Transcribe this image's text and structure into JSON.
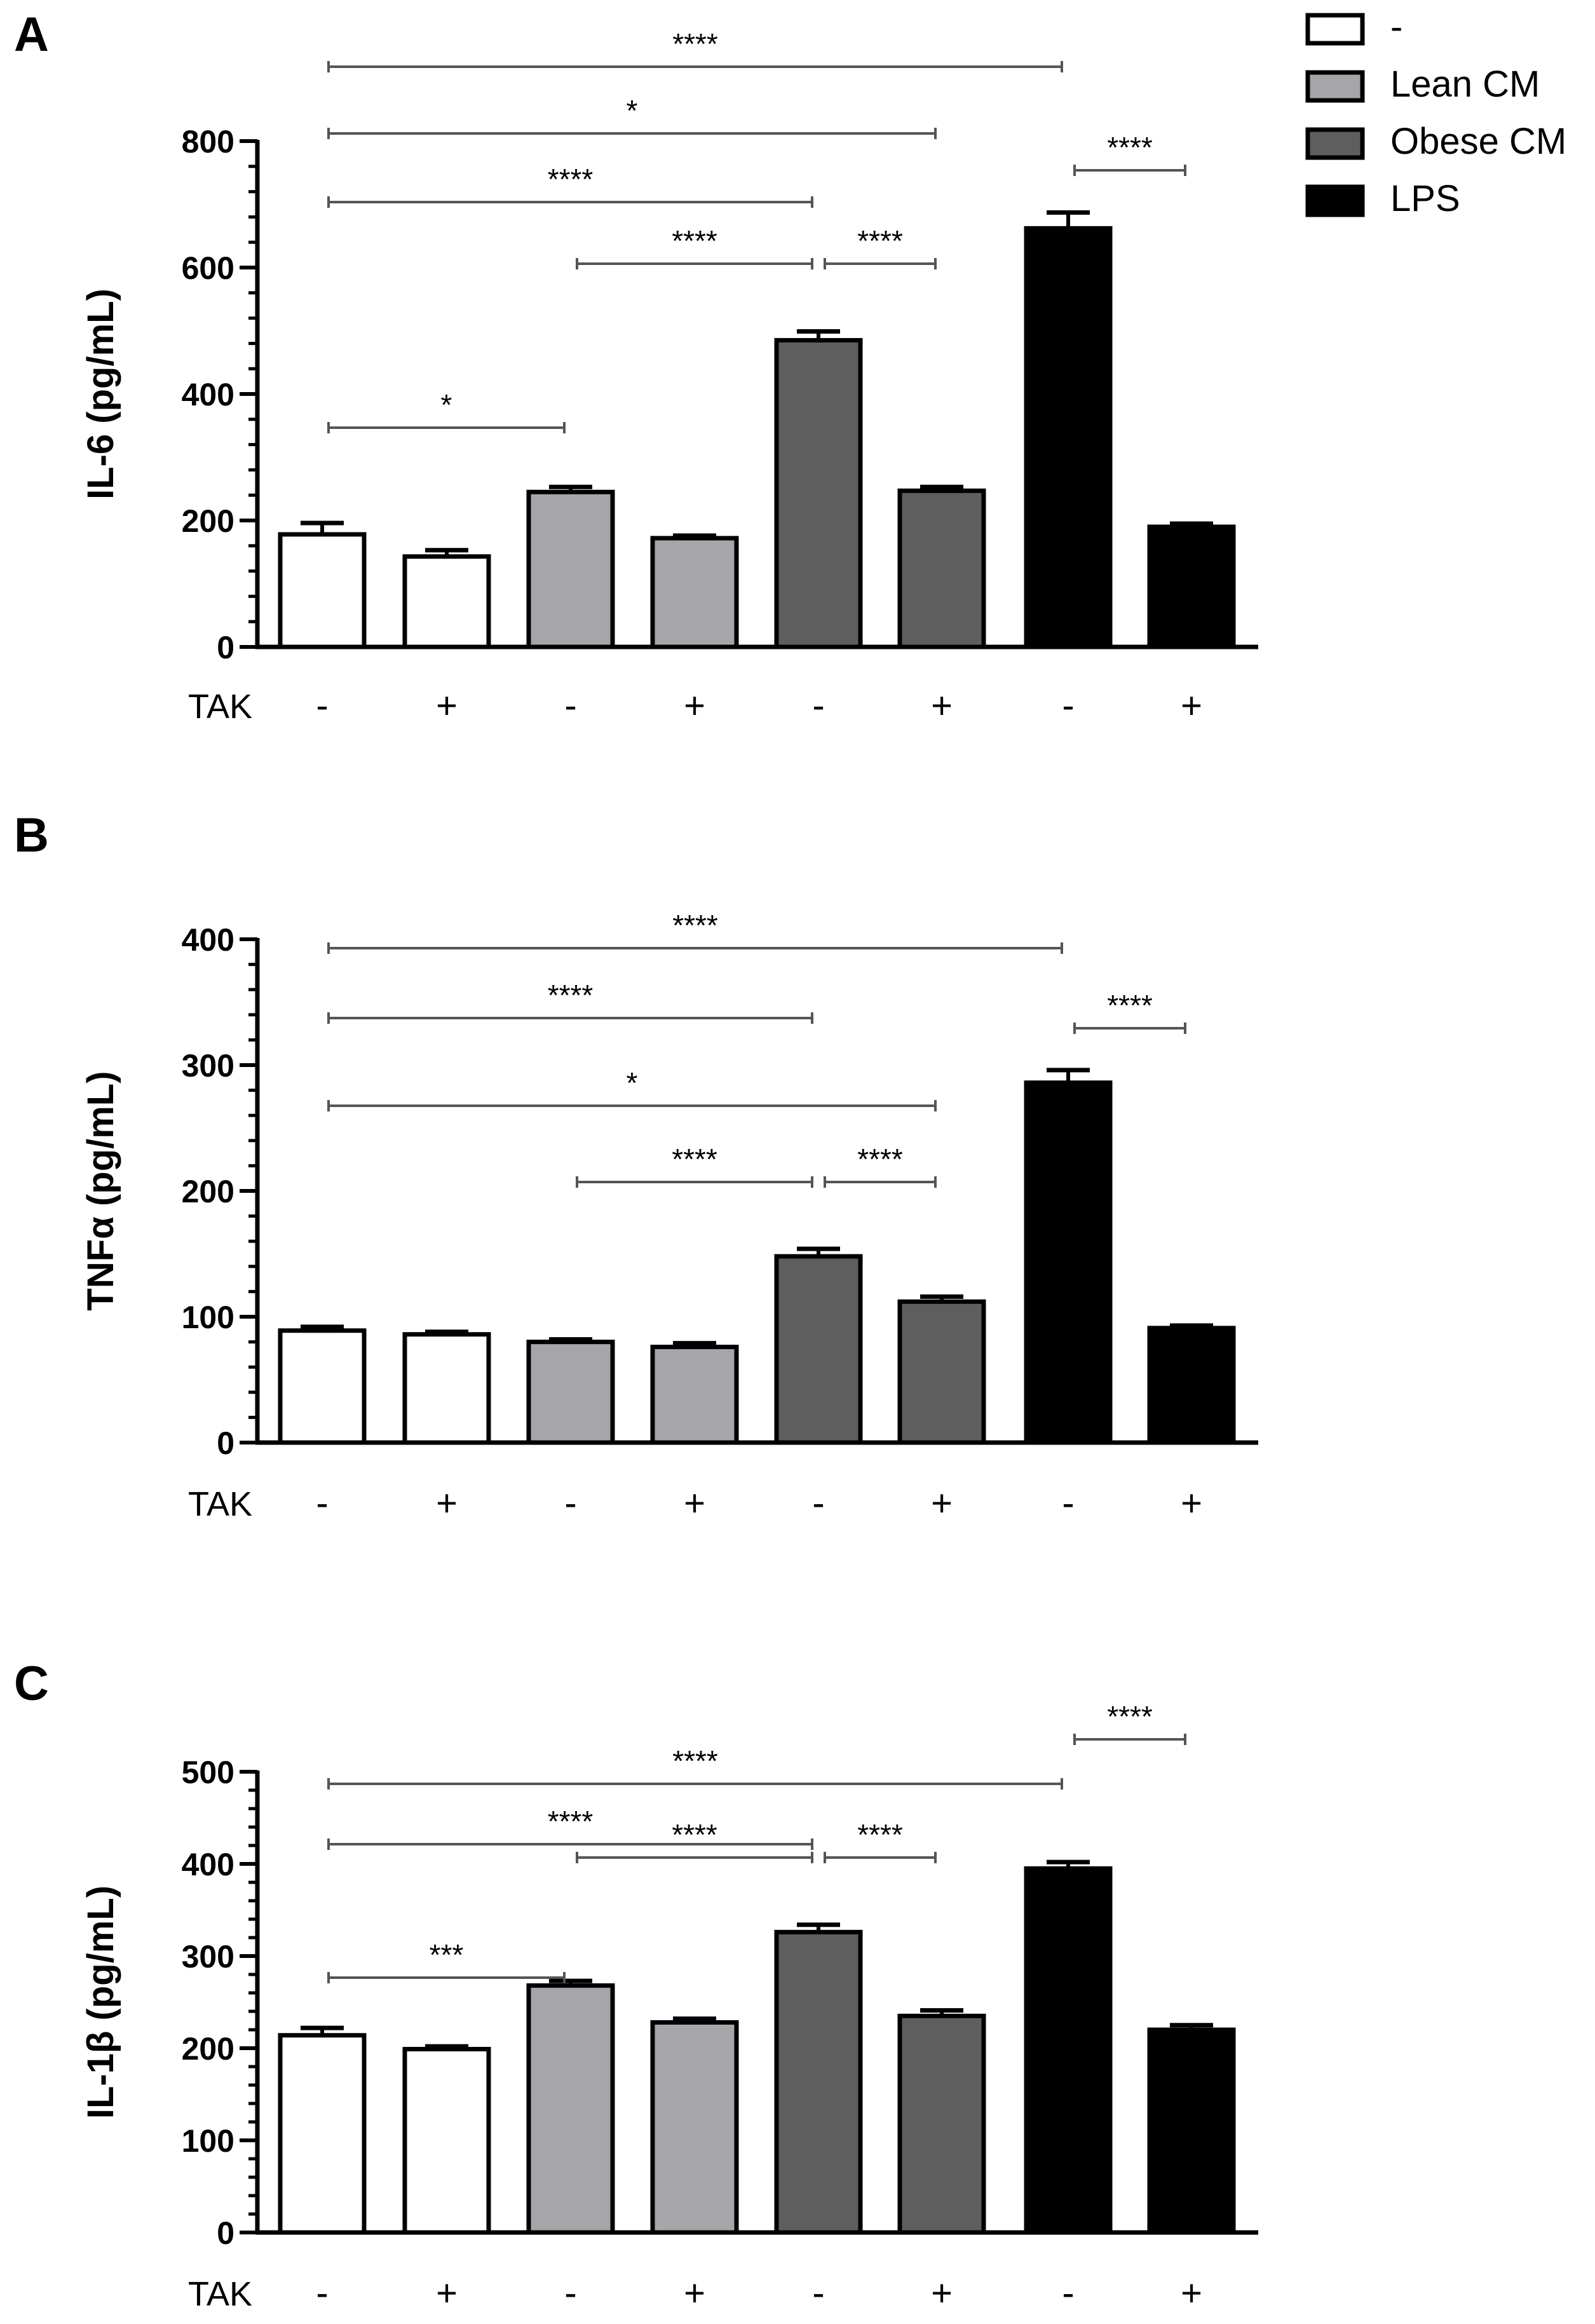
{
  "legend": {
    "items": [
      {
        "label": "-",
        "color": "#ffffff"
      },
      {
        "label": "Lean CM",
        "color": "#a6a6aa"
      },
      {
        "label": "Obese CM",
        "color": "#5e5e5e"
      },
      {
        "label": "LPS",
        "color": "#000000"
      }
    ]
  },
  "colors": {
    "control": "#ffffff",
    "lean": "#a6a6aa",
    "obese": "#5e5e5e",
    "lps": "#000000",
    "axis": "#000000",
    "bracket": "#555555"
  },
  "chart_data": [
    {
      "panel": "A",
      "type": "bar",
      "ylabel": "IL-6 (pg/mL)",
      "ylim": [
        0,
        800
      ],
      "yticks": [
        0,
        200,
        400,
        600,
        800
      ],
      "xlabel": "TAK",
      "categories": [
        "-",
        "+",
        "-",
        "+",
        "-",
        "+",
        "-",
        "+"
      ],
      "groups": [
        "-",
        "-",
        "Lean CM",
        "Lean CM",
        "Obese CM",
        "Obese CM",
        "LPS",
        "LPS"
      ],
      "values": [
        178,
        143,
        245,
        172,
        485,
        247,
        662,
        190
      ],
      "errors": [
        18,
        10,
        8,
        4,
        14,
        6,
        25,
        5
      ],
      "significance": [
        {
          "from": 0,
          "to": 6,
          "label": "****"
        },
        {
          "from": 0,
          "to": 5,
          "label": "*"
        },
        {
          "from": 0,
          "to": 4,
          "label": "****"
        },
        {
          "from": 2,
          "to": 4,
          "label": "****"
        },
        {
          "from": 4,
          "to": 5,
          "label": "****"
        },
        {
          "from": 6,
          "to": 7,
          "label": "****"
        },
        {
          "from": 0,
          "to": 2,
          "label": "*"
        }
      ]
    },
    {
      "panel": "B",
      "type": "bar",
      "ylabel": "TNFα (pg/mL)",
      "ylim": [
        0,
        400
      ],
      "yticks": [
        0,
        100,
        200,
        300,
        400
      ],
      "xlabel": "TAK",
      "categories": [
        "-",
        "+",
        "-",
        "+",
        "-",
        "+",
        "-",
        "+"
      ],
      "groups": [
        "-",
        "-",
        "Lean CM",
        "Lean CM",
        "Obese CM",
        "Obese CM",
        "LPS",
        "LPS"
      ],
      "values": [
        89,
        86,
        80,
        76,
        148,
        112,
        286,
        91
      ],
      "errors": [
        3,
        2,
        2,
        3,
        6,
        4,
        10,
        2
      ],
      "significance": [
        {
          "from": 0,
          "to": 6,
          "label": "****"
        },
        {
          "from": 0,
          "to": 4,
          "label": "****"
        },
        {
          "from": 0,
          "to": 5,
          "label": "*"
        },
        {
          "from": 2,
          "to": 4,
          "label": "****"
        },
        {
          "from": 4,
          "to": 5,
          "label": "****"
        },
        {
          "from": 6,
          "to": 7,
          "label": "****"
        }
      ]
    },
    {
      "panel": "C",
      "type": "bar",
      "ylabel": "IL-1β (pg/mL)",
      "ylim": [
        0,
        500
      ],
      "yticks": [
        0,
        100,
        200,
        300,
        400,
        500
      ],
      "xlabel": "TAK",
      "categories": [
        "-",
        "+",
        "-",
        "+",
        "-",
        "+",
        "-",
        "+"
      ],
      "groups": [
        "-",
        "-",
        "Lean CM",
        "Lean CM",
        "Obese CM",
        "Obese CM",
        "LPS",
        "LPS"
      ],
      "values": [
        214,
        199,
        268,
        228,
        326,
        235,
        395,
        220
      ],
      "errors": [
        8,
        3,
        5,
        4,
        8,
        6,
        7,
        5
      ],
      "significance": [
        {
          "from": 0,
          "to": 6,
          "label": "****"
        },
        {
          "from": 0,
          "to": 4,
          "label": "****"
        },
        {
          "from": 2,
          "to": 4,
          "label": "****"
        },
        {
          "from": 4,
          "to": 5,
          "label": "****"
        },
        {
          "from": 6,
          "to": 7,
          "label": "****"
        },
        {
          "from": 0,
          "to": 2,
          "label": "***"
        }
      ]
    }
  ]
}
